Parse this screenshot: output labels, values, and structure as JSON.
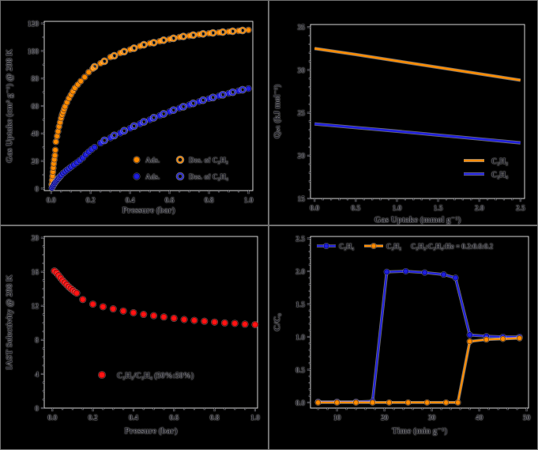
{
  "figure": {
    "background": "#000000",
    "spine_color": "#d8d8d8",
    "tick_color": "#1c1c28",
    "text_color": "#16161f",
    "accent_orange": "#ff8c00",
    "accent_blue": "#2020dd",
    "accent_red": "#ff1414"
  },
  "chart_data": [
    {
      "id": "isotherms",
      "type": "scatter",
      "position": "top-left",
      "xlabel": "Pressure (bar)",
      "ylabel": "Gas Uptake (cm³ g⁻¹) @ 298 K",
      "xlim": [
        0.0,
        1.0
      ],
      "ylim": [
        0,
        120
      ],
      "xticks": {
        "values": [
          0.0,
          0.2,
          0.4,
          0.6,
          0.8,
          1.0
        ],
        "labels": [
          "0.0",
          "0.2",
          "0.4",
          "0.6",
          "0.8",
          "1.0"
        ]
      },
      "yticks": {
        "values": [
          0,
          20,
          40,
          60,
          80,
          100,
          120
        ],
        "labels": [
          "0",
          "20",
          "40",
          "60",
          "80",
          "100",
          "120"
        ]
      },
      "grid": false,
      "legend_position": "lower-right",
      "series": [
        {
          "name": "C2H2 adsorption",
          "label": "Ads.",
          "marker": "filled",
          "color": "#ff8c00",
          "edge": "#7d4000",
          "points": [
            [
              0.003,
              3
            ],
            [
              0.005,
              6
            ],
            [
              0.007,
              9
            ],
            [
              0.009,
              12
            ],
            [
              0.011,
              15
            ],
            [
              0.013,
              18
            ],
            [
              0.016,
              21
            ],
            [
              0.019,
              24
            ],
            [
              0.021,
              28
            ],
            [
              0.024,
              34
            ],
            [
              0.03,
              38
            ],
            [
              0.035,
              41.5
            ],
            [
              0.04,
              45
            ],
            [
              0.045,
              48
            ],
            [
              0.05,
              51
            ],
            [
              0.055,
              53.5
            ],
            [
              0.06,
              55.5
            ],
            [
              0.065,
              57.5
            ],
            [
              0.07,
              59.5
            ],
            [
              0.08,
              62.5
            ],
            [
              0.09,
              65.5
            ],
            [
              0.1,
              68
            ],
            [
              0.11,
              70.5
            ],
            [
              0.12,
              73
            ],
            [
              0.135,
              75.5
            ],
            [
              0.15,
              78
            ],
            [
              0.17,
              81
            ],
            [
              0.19,
              84.5
            ],
            [
              0.21,
              87
            ],
            [
              0.25,
              91
            ],
            [
              0.3,
              95.5
            ],
            [
              0.35,
              98.5
            ],
            [
              0.4,
              101
            ],
            [
              0.45,
              103.5
            ],
            [
              0.5,
              105.5
            ],
            [
              0.55,
              107
            ],
            [
              0.6,
              108.5
            ],
            [
              0.65,
              110
            ],
            [
              0.7,
              111
            ],
            [
              0.75,
              112
            ],
            [
              0.8,
              112.8
            ],
            [
              0.85,
              113.4
            ],
            [
              0.9,
              114
            ],
            [
              0.95,
              114.6
            ],
            [
              1.0,
              115.2
            ]
          ]
        },
        {
          "name": "C2H2 desorption",
          "label": "Des. of C₂H₂",
          "marker": "open",
          "color": "#ff8c00",
          "edge": "#7d4000",
          "points": [
            [
              0.22,
              88.5
            ],
            [
              0.27,
              92.5
            ],
            [
              0.32,
              96.5
            ],
            [
              0.37,
              99.5
            ],
            [
              0.42,
              102
            ],
            [
              0.47,
              104.5
            ],
            [
              0.52,
              106
            ],
            [
              0.57,
              107.8
            ],
            [
              0.62,
              109.2
            ],
            [
              0.67,
              110.5
            ],
            [
              0.72,
              111.5
            ],
            [
              0.77,
              112.4
            ],
            [
              0.82,
              113.1
            ],
            [
              0.87,
              113.7
            ],
            [
              0.92,
              114.3
            ],
            [
              0.97,
              114.9
            ]
          ]
        },
        {
          "name": "C2H4 adsorption",
          "label": "Ads.",
          "marker": "filled",
          "color": "#2020dd",
          "edge": "#000070",
          "points": [
            [
              0.004,
              0.5
            ],
            [
              0.008,
              1.5
            ],
            [
              0.012,
              2.5
            ],
            [
              0.016,
              3.5
            ],
            [
              0.02,
              4.3
            ],
            [
              0.025,
              5.3
            ],
            [
              0.03,
              6.2
            ],
            [
              0.035,
              7
            ],
            [
              0.04,
              7.9
            ],
            [
              0.045,
              8.7
            ],
            [
              0.05,
              9.5
            ],
            [
              0.06,
              11
            ],
            [
              0.07,
              12.2
            ],
            [
              0.08,
              13.4
            ],
            [
              0.09,
              14.5
            ],
            [
              0.1,
              15.6
            ],
            [
              0.115,
              17.2
            ],
            [
              0.13,
              18.8
            ],
            [
              0.145,
              20.4
            ],
            [
              0.16,
              22.2
            ],
            [
              0.175,
              24.6
            ],
            [
              0.19,
              26.6
            ],
            [
              0.205,
              28.4
            ],
            [
              0.22,
              30
            ],
            [
              0.25,
              33
            ],
            [
              0.3,
              36.8
            ],
            [
              0.35,
              40.3
            ],
            [
              0.4,
              43.8
            ],
            [
              0.45,
              47
            ],
            [
              0.5,
              50
            ],
            [
              0.55,
              53
            ],
            [
              0.6,
              55.8
            ],
            [
              0.65,
              58.4
            ],
            [
              0.7,
              60.8
            ],
            [
              0.75,
              63.2
            ],
            [
              0.8,
              65.3
            ],
            [
              0.85,
              67.3
            ],
            [
              0.9,
              69.2
            ],
            [
              0.95,
              71
            ],
            [
              1.0,
              72.6
            ]
          ]
        },
        {
          "name": "C2H4 desorption",
          "label": "Des. of C₂H₄",
          "marker": "open",
          "color": "#2020dd",
          "edge": "#000070",
          "points": [
            [
              0.27,
              35
            ],
            [
              0.32,
              38.6
            ],
            [
              0.37,
              42
            ],
            [
              0.42,
              45.4
            ],
            [
              0.47,
              48.5
            ],
            [
              0.52,
              51.5
            ],
            [
              0.57,
              54.3
            ],
            [
              0.62,
              57
            ],
            [
              0.67,
              59.5
            ],
            [
              0.72,
              61.9
            ],
            [
              0.77,
              64.2
            ],
            [
              0.82,
              66.2
            ],
            [
              0.87,
              68.2
            ],
            [
              0.92,
              70
            ],
            [
              0.97,
              71.8
            ]
          ]
        }
      ],
      "legend": {
        "entries": [
          {
            "swatch": "dot",
            "color": "#ff8c00",
            "edge": "#7d4000",
            "label": "Ads."
          },
          {
            "swatch": "open-dot",
            "color": "#ff8c00",
            "edge": "#7d4000",
            "label": "Des. of C₂H₂"
          },
          {
            "swatch": "dot",
            "color": "#2020dd",
            "edge": "#000070",
            "label": "Ads."
          },
          {
            "swatch": "open-dot",
            "color": "#2020dd",
            "edge": "#000070",
            "label": "Des. of C₂H₄"
          }
        ]
      }
    },
    {
      "id": "qst",
      "type": "line",
      "position": "top-right",
      "xlabel": "Gas Uptake (mmol g⁻¹)",
      "ylabel": "Qₛₜ (kJ mol⁻¹)",
      "xlim": [
        0.0,
        2.5
      ],
      "ylim": [
        15,
        35
      ],
      "xticks": {
        "values": [
          0.0,
          0.5,
          1.0,
          1.5,
          2.0,
          2.5
        ],
        "labels": [
          "0.0",
          "0.5",
          "1.0",
          "1.5",
          "2.0",
          "2.5"
        ]
      },
      "yticks": {
        "values": [
          15,
          20,
          25,
          30,
          35
        ],
        "labels": [
          "15",
          "20",
          "25",
          "30",
          "35"
        ]
      },
      "grid": false,
      "legend_position": "lower-right",
      "series": [
        {
          "name": "C2H2 heat of adsorption",
          "label": "C₂H₂",
          "line": true,
          "color": "#ff8c00",
          "edge": "#7d4000",
          "points": [
            [
              0.0,
              32.5
            ],
            [
              0.5,
              31.8
            ],
            [
              1.0,
              31.05
            ],
            [
              1.5,
              30.3
            ],
            [
              2.0,
              29.55
            ],
            [
              2.5,
              28.8
            ]
          ]
        },
        {
          "name": "C2H4 heat of adsorption",
          "label": "C₂H₄",
          "line": true,
          "color": "#2020dd",
          "edge": "#000070",
          "points": [
            [
              0.0,
              23.7
            ],
            [
              0.5,
              23.28
            ],
            [
              1.0,
              22.85
            ],
            [
              1.5,
              22.4
            ],
            [
              2.0,
              21.95
            ],
            [
              2.5,
              21.5
            ]
          ]
        }
      ],
      "legend": {
        "entries": [
          {
            "swatch": "line",
            "color": "#ff8c00",
            "edge": "#7d4000",
            "label": "C₂H₂"
          },
          {
            "swatch": "line",
            "color": "#2020dd",
            "edge": "#000070",
            "label": "C₂H₄"
          }
        ]
      }
    },
    {
      "id": "iast",
      "type": "scatter",
      "position": "bottom-left",
      "xlabel": "Pressure (bar)",
      "ylabel": "IAST Selectivity @ 298 K",
      "xlim": [
        0.0,
        1.0
      ],
      "ylim": [
        0,
        20
      ],
      "xticks": {
        "values": [
          0.0,
          0.2,
          0.4,
          0.6,
          0.8,
          1.0
        ],
        "labels": [
          "0.0",
          "0.2",
          "0.4",
          "0.6",
          "0.8",
          "1.0"
        ]
      },
      "yticks": {
        "values": [
          0,
          4,
          8,
          12,
          16,
          20
        ],
        "labels": [
          "0",
          "4",
          "8",
          "12",
          "16",
          "20"
        ]
      },
      "grid": false,
      "legend_position": "lower-center",
      "series": [
        {
          "name": "IAST selectivity C2H2/C2H4",
          "label": "C₂H₂/C₂H₄ (50%:50%)",
          "marker": "filled",
          "color": "#ff1414",
          "edge": "#7d0000",
          "points": [
            [
              0.01,
              16.1
            ],
            [
              0.02,
              15.9
            ],
            [
              0.03,
              15.6
            ],
            [
              0.04,
              15.3
            ],
            [
              0.05,
              15.0
            ],
            [
              0.06,
              14.75
            ],
            [
              0.07,
              14.5
            ],
            [
              0.08,
              14.25
            ],
            [
              0.09,
              14.05
            ],
            [
              0.1,
              13.85
            ],
            [
              0.11,
              13.65
            ],
            [
              0.12,
              13.5
            ],
            [
              0.15,
              12.75
            ],
            [
              0.2,
              12.2
            ],
            [
              0.25,
              11.9
            ],
            [
              0.3,
              11.65
            ],
            [
              0.35,
              11.4
            ],
            [
              0.4,
              11.2
            ],
            [
              0.45,
              11.0
            ],
            [
              0.5,
              10.85
            ],
            [
              0.55,
              10.7
            ],
            [
              0.6,
              10.55
            ],
            [
              0.65,
              10.4
            ],
            [
              0.7,
              10.3
            ],
            [
              0.75,
              10.2
            ],
            [
              0.8,
              10.1
            ],
            [
              0.85,
              10.0
            ],
            [
              0.9,
              9.95
            ],
            [
              0.95,
              9.85
            ],
            [
              1.0,
              9.8
            ]
          ]
        }
      ],
      "legend": {
        "entries": [
          {
            "swatch": "dot",
            "color": "#ff1414",
            "edge": "#7d0000",
            "label": "C₂H₂/C₂H₄ (50%:50%)"
          }
        ]
      }
    },
    {
      "id": "breakthrough",
      "type": "line",
      "position": "bottom-right",
      "xlabel": "Time (min g⁻¹)",
      "ylabel": "C/C₀",
      "xlim": [
        5,
        50
      ],
      "ylim": [
        0.0,
        2.5
      ],
      "xticks": {
        "values": [
          10,
          20,
          30,
          40,
          50
        ],
        "labels": [
          "10",
          "20",
          "30",
          "40",
          "50"
        ]
      },
      "yticks": {
        "values": [
          0.0,
          0.5,
          1.0,
          1.5,
          2.0,
          2.5
        ],
        "labels": [
          "0.0",
          "0.5",
          "1.0",
          "1.5",
          "2.0",
          "2.5"
        ]
      },
      "grid": false,
      "legend_position": "upper-left",
      "series": [
        {
          "name": "C2H4 breakthrough",
          "label": "C₂H₄",
          "line": true,
          "marker": "filled",
          "color": "#2020dd",
          "edge": "#000070",
          "points": [
            [
              6,
              0.01
            ],
            [
              10,
              0.01
            ],
            [
              14,
              0.01
            ],
            [
              17.5,
              0.02
            ],
            [
              20.5,
              1.99
            ],
            [
              24.5,
              2.0
            ],
            [
              28.5,
              1.98
            ],
            [
              32.5,
              1.95
            ],
            [
              35,
              1.9
            ],
            [
              38,
              1.03
            ],
            [
              41.5,
              1.01
            ],
            [
              45,
              1.0
            ],
            [
              48.5,
              1.0
            ]
          ]
        },
        {
          "name": "C2H2 breakthrough",
          "label": "C₂H₂",
          "line": true,
          "marker": "filled",
          "color": "#ff8c00",
          "edge": "#7d4000",
          "points": [
            [
              6,
              0.0
            ],
            [
              10,
              0.0
            ],
            [
              14,
              0.0
            ],
            [
              17.5,
              0.0
            ],
            [
              21,
              0.0
            ],
            [
              25,
              0.0
            ],
            [
              29,
              0.0
            ],
            [
              33,
              0.0
            ],
            [
              35.5,
              0.0
            ],
            [
              38,
              0.93
            ],
            [
              41.5,
              0.96
            ],
            [
              45,
              0.97
            ],
            [
              48.5,
              0.98
            ]
          ]
        }
      ],
      "legend": {
        "entries": [
          {
            "swatch": "line-dot",
            "color": "#2020dd",
            "edge": "#000070",
            "label": "C₂H₄"
          },
          {
            "swatch": "line-dot",
            "color": "#ff8c00",
            "edge": "#7d4000",
            "label": "C₂H₂"
          },
          {
            "swatch": "none",
            "color": "",
            "edge": "",
            "label": "C₂H₂:C₂H₄:He = 0.2:0.6:0.2"
          }
        ]
      }
    }
  ]
}
